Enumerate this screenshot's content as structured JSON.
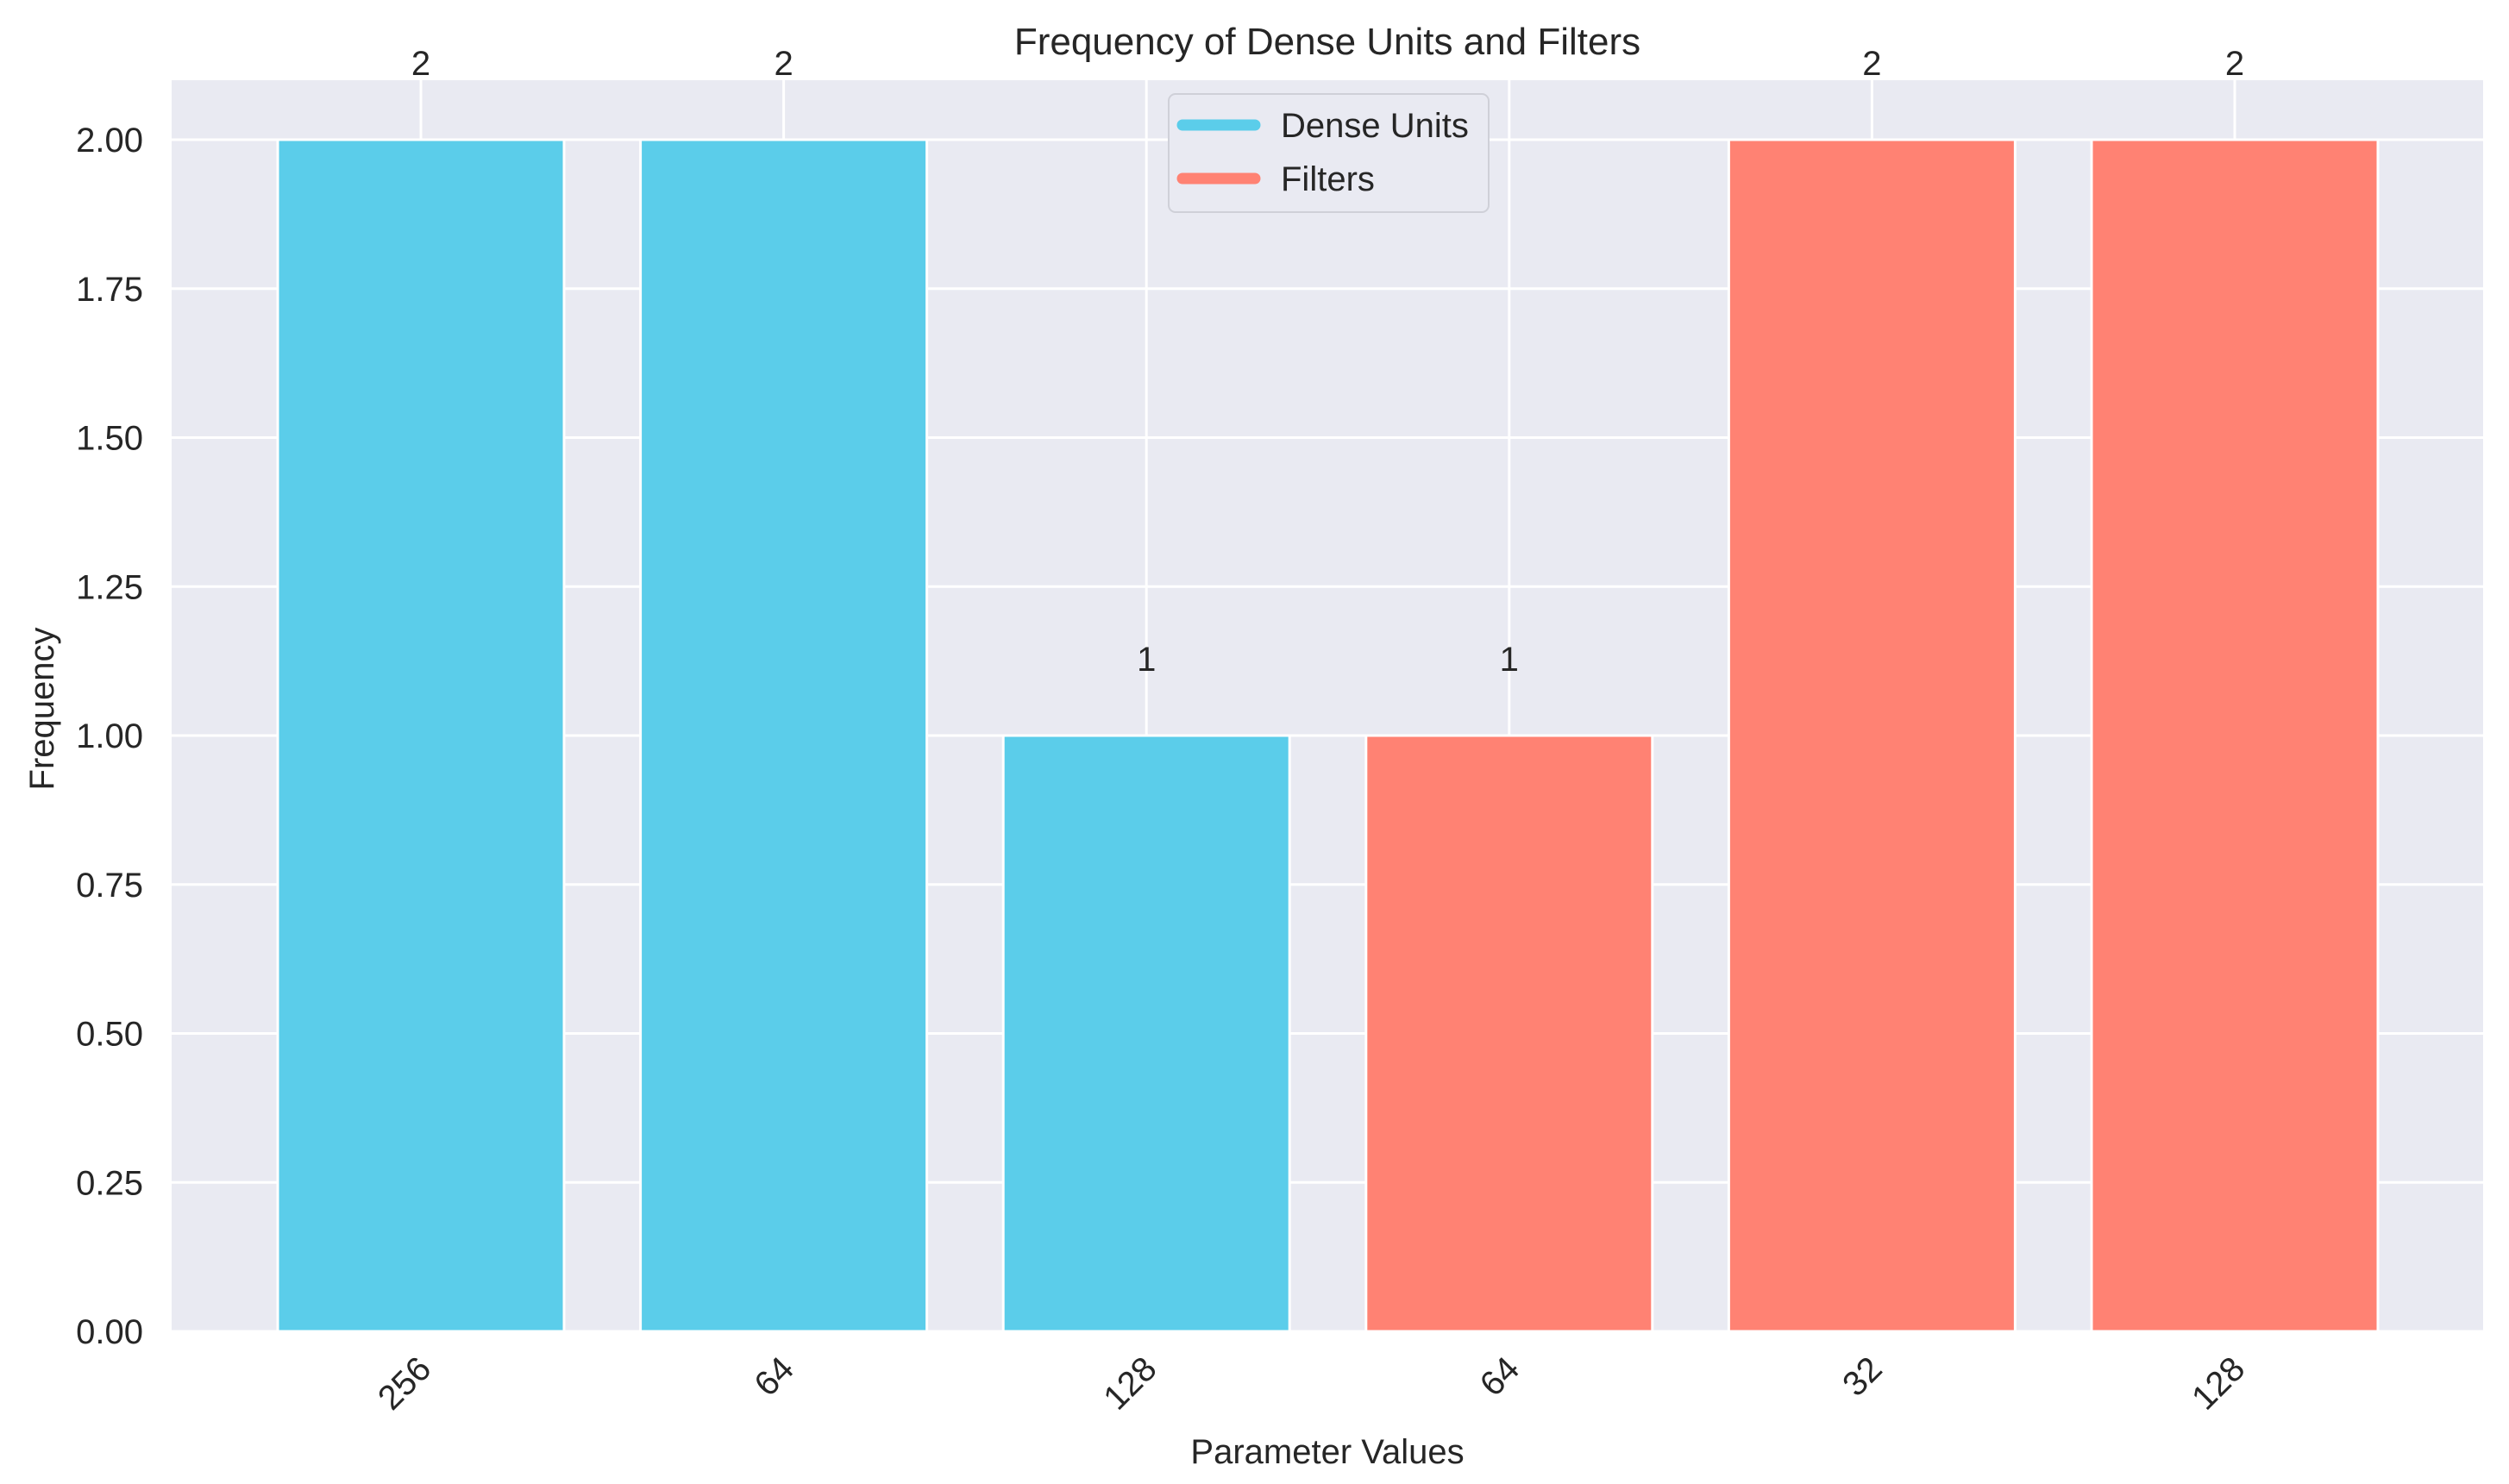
{
  "chart_data": {
    "type": "bar",
    "title": "Frequency of Dense Units and Filters",
    "xlabel": "Parameter Values",
    "ylabel": "Frequency",
    "ylim": [
      0,
      2.1
    ],
    "yticks": [
      "0.00",
      "0.25",
      "0.50",
      "0.75",
      "1.00",
      "1.25",
      "1.50",
      "1.75",
      "2.00"
    ],
    "grid": true,
    "legend_position": "top-center",
    "categories": [
      "256",
      "64",
      "128",
      "64",
      "32",
      "128"
    ],
    "values": [
      2,
      2,
      1,
      1,
      2,
      2
    ],
    "data_labels": [
      "2",
      "2",
      "1",
      "1",
      "2",
      "2"
    ],
    "bar_series": [
      "Dense Units",
      "Dense Units",
      "Dense Units",
      "Filters",
      "Filters",
      "Filters"
    ],
    "series": [
      {
        "name": "Dense Units",
        "color": "#5bcdea"
      },
      {
        "name": "Filters",
        "color": "#ff8273"
      }
    ],
    "colors": {
      "background": "#e9eaf2",
      "grid": "#ffffff",
      "text": "#262626"
    }
  }
}
